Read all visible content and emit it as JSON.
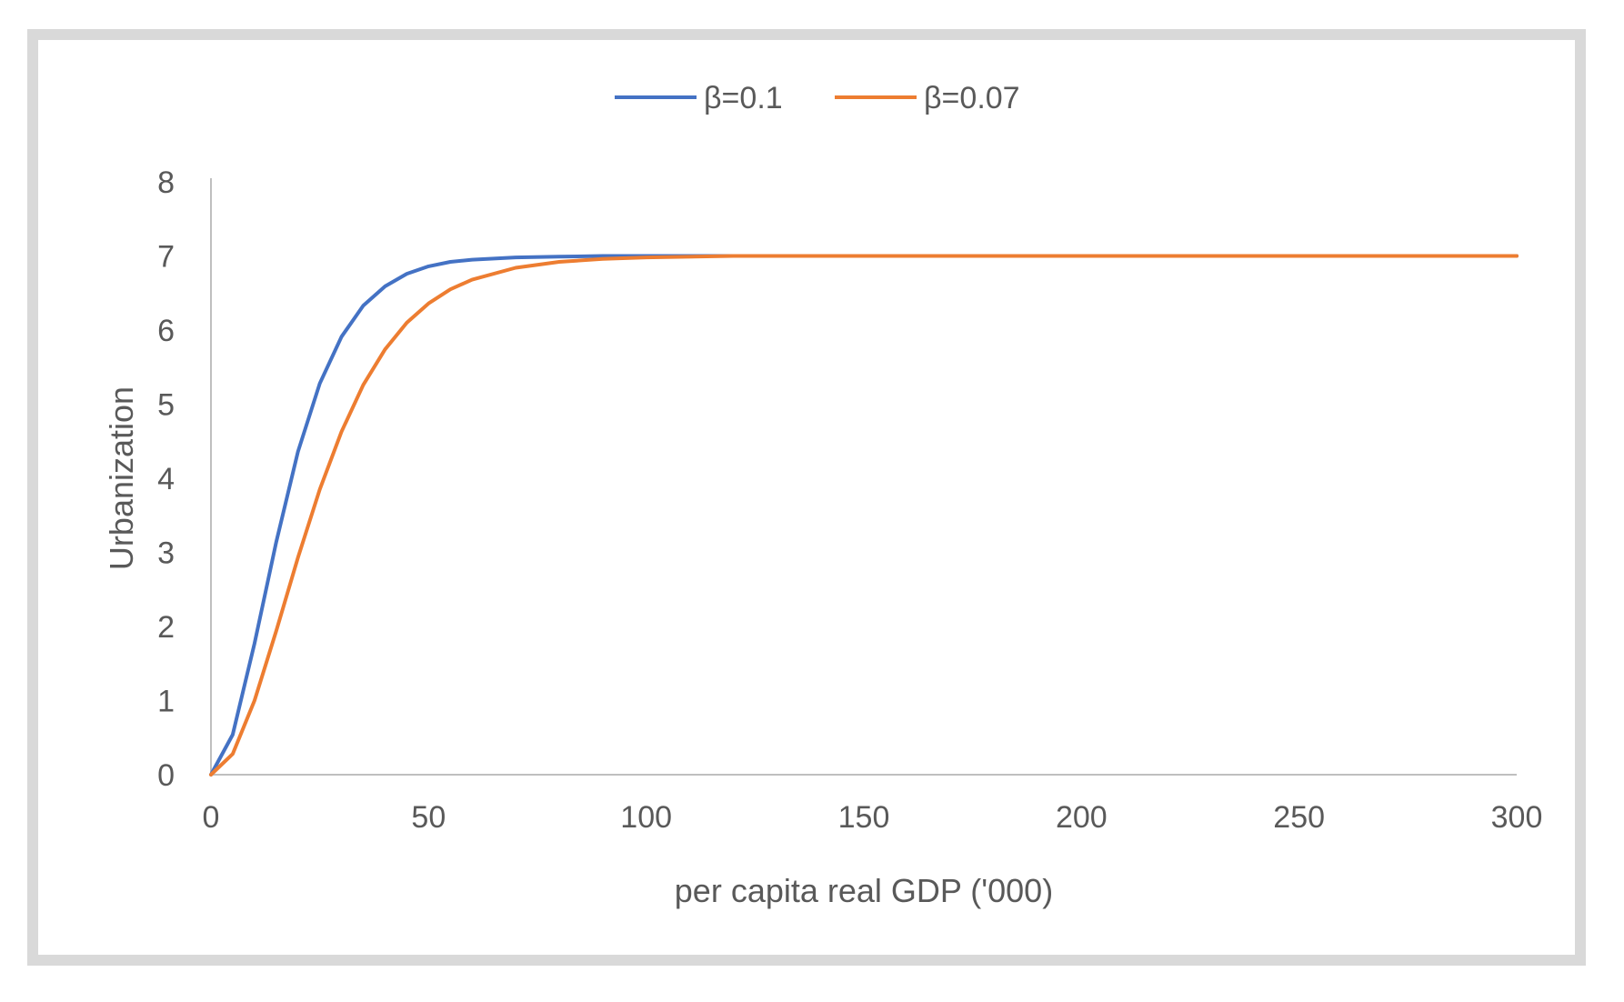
{
  "chart_data": {
    "type": "line",
    "title": "",
    "xlabel": "per capita real GDP ('000)",
    "ylabel": "Urbanization",
    "xlim": [
      0,
      300
    ],
    "ylim": [
      0,
      8
    ],
    "xticks": [
      0,
      50,
      100,
      150,
      200,
      250,
      300
    ],
    "yticks": [
      0,
      1,
      2,
      3,
      4,
      5,
      6,
      7,
      8
    ],
    "grid": false,
    "legend_position": "top",
    "x": [
      0,
      5,
      10,
      15,
      20,
      25,
      30,
      35,
      40,
      45,
      50,
      55,
      60,
      70,
      80,
      90,
      100,
      120,
      150,
      200,
      250,
      300
    ],
    "series": [
      {
        "name": "β=0.1",
        "color": "#4472C4",
        "values": [
          0,
          0.54,
          1.77,
          3.14,
          4.36,
          5.28,
          5.91,
          6.33,
          6.59,
          6.76,
          6.86,
          6.92,
          6.95,
          6.98,
          6.99,
          7.0,
          7.0,
          7.0,
          7.0,
          7.0,
          7.0,
          7.0
        ]
      },
      {
        "name": "β=0.07",
        "color": "#ED7D31",
        "values": [
          0,
          0.28,
          1.0,
          1.94,
          2.93,
          3.85,
          4.63,
          5.26,
          5.74,
          6.1,
          6.36,
          6.55,
          6.68,
          6.84,
          6.92,
          6.96,
          6.98,
          7.0,
          7.0,
          7.0,
          7.0,
          7.0
        ]
      }
    ]
  }
}
